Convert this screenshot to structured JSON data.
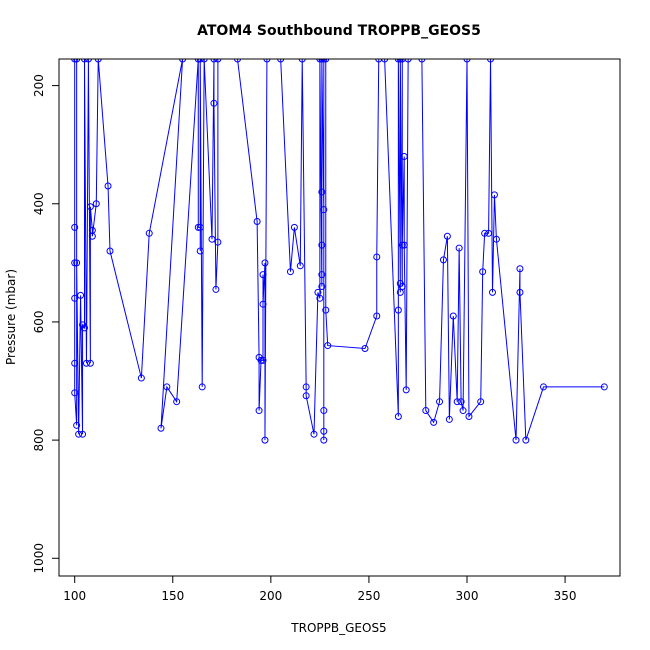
{
  "chart_data": {
    "type": "line",
    "title": "ATOM4 Southbound TROPPB_GEOS5",
    "xlabel": "TROPPB_GEOS5",
    "ylabel": "Pressure (mbar)",
    "xlim": [
      92,
      378
    ],
    "ylim": [
      1030,
      155
    ],
    "y_reversed": true,
    "x_ticks": [
      100,
      150,
      200,
      250,
      300,
      350
    ],
    "y_ticks": [
      200,
      400,
      600,
      800,
      1000
    ],
    "grid": false,
    "legend": "none",
    "colors": {
      "series": "#0000ff",
      "axis": "#000000",
      "background": "#ffffff"
    },
    "series": [
      {
        "points": [
          [
            100,
            560
          ],
          [
            100,
            440
          ],
          [
            100,
            155
          ],
          [
            100,
            500
          ],
          [
            100,
            670
          ],
          [
            100,
            720
          ],
          [
            101,
            775
          ],
          [
            101,
            155
          ],
          [
            101,
            500
          ],
          [
            102,
            790
          ],
          [
            103,
            555
          ],
          [
            104,
            790
          ],
          [
            104,
            605
          ],
          [
            105,
            610
          ],
          [
            105,
            155
          ],
          [
            106,
            670
          ],
          [
            107,
            155
          ],
          [
            108,
            670
          ],
          [
            108,
            405
          ],
          [
            109,
            445
          ],
          [
            109,
            455
          ],
          [
            111,
            400
          ],
          [
            112,
            155
          ],
          [
            117,
            370
          ],
          [
            118,
            480
          ],
          [
            134,
            695
          ],
          [
            138,
            450
          ],
          [
            155,
            155
          ],
          [
            144,
            780
          ],
          [
            147,
            710
          ],
          [
            152,
            735
          ],
          [
            163,
            155
          ],
          [
            163,
            440
          ],
          [
            164,
            440
          ],
          [
            164,
            480
          ],
          [
            164,
            155
          ],
          [
            165,
            710
          ],
          [
            166,
            155
          ],
          [
            170,
            460
          ],
          [
            171,
            155
          ],
          [
            171,
            230
          ],
          [
            172,
            545
          ],
          [
            173,
            465
          ],
          [
            173,
            155
          ],
          [
            183,
            155
          ],
          [
            193,
            430
          ],
          [
            194,
            660
          ],
          [
            194,
            750
          ],
          [
            195,
            665
          ],
          [
            196,
            665
          ],
          [
            196,
            520
          ],
          [
            196,
            570
          ],
          [
            197,
            500
          ],
          [
            197,
            800
          ],
          [
            198,
            155
          ],
          [
            205,
            155
          ],
          [
            210,
            515
          ],
          [
            212,
            440
          ],
          [
            215,
            505
          ],
          [
            216,
            155
          ],
          [
            218,
            710
          ],
          [
            218,
            725
          ],
          [
            222,
            790
          ],
          [
            224,
            550
          ],
          [
            225,
            560
          ],
          [
            225,
            155
          ],
          [
            226,
            540
          ],
          [
            226,
            520
          ],
          [
            226,
            470
          ],
          [
            226,
            380
          ],
          [
            226,
            155
          ],
          [
            227,
            410
          ],
          [
            227,
            750
          ],
          [
            227,
            785
          ],
          [
            227,
            800
          ],
          [
            227,
            155
          ],
          [
            228,
            155
          ],
          [
            228,
            580
          ],
          [
            229,
            640
          ],
          [
            248,
            645
          ],
          [
            254,
            590
          ],
          [
            254,
            490
          ],
          [
            255,
            155
          ],
          [
            258,
            155
          ],
          [
            265,
            760
          ],
          [
            265,
            580
          ],
          [
            265,
            155
          ],
          [
            266,
            535
          ],
          [
            266,
            550
          ],
          [
            266,
            155
          ],
          [
            267,
            540
          ],
          [
            267,
            155
          ],
          [
            267,
            470
          ],
          [
            268,
            320
          ],
          [
            268,
            470
          ],
          [
            269,
            715
          ],
          [
            270,
            155
          ],
          [
            277,
            155
          ],
          [
            279,
            750
          ],
          [
            283,
            770
          ],
          [
            286,
            735
          ],
          [
            288,
            495
          ],
          [
            290,
            455
          ],
          [
            291,
            765
          ],
          [
            293,
            590
          ],
          [
            295,
            735
          ],
          [
            296,
            475
          ],
          [
            297,
            735
          ],
          [
            298,
            750
          ],
          [
            300,
            155
          ],
          [
            301,
            760
          ],
          [
            307,
            735
          ],
          [
            308,
            515
          ],
          [
            309,
            450
          ],
          [
            311,
            450
          ],
          [
            312,
            155
          ],
          [
            313,
            550
          ],
          [
            314,
            385
          ],
          [
            315,
            460
          ],
          [
            325,
            800
          ],
          [
            327,
            510
          ],
          [
            327,
            550
          ],
          [
            330,
            800
          ],
          [
            339,
            710
          ],
          [
            370,
            710
          ]
        ]
      }
    ]
  }
}
